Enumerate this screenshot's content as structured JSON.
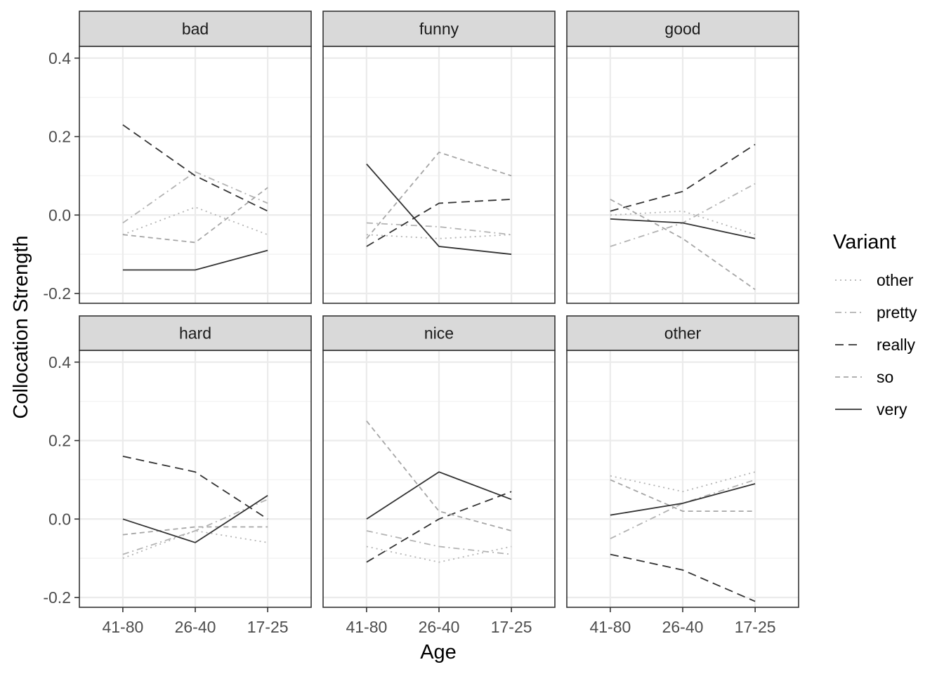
{
  "chart_data": {
    "type": "line",
    "xlabel": "Age",
    "ylabel": "Collocation Strength",
    "x": [
      "41-80",
      "26-40",
      "17-25"
    ],
    "ylim": [
      -0.225,
      0.43
    ],
    "yticks": [
      -0.2,
      0.0,
      0.2,
      0.4
    ],
    "ytick_labels": [
      "-0.2",
      "0.0",
      "0.2",
      "0.4"
    ],
    "grid": true,
    "legend": {
      "title": "Variant",
      "placement": "right",
      "entries": [
        "other",
        "pretty",
        "really",
        "so",
        "very"
      ]
    },
    "styles": {
      "other": {
        "color": "#b3b3b3",
        "dash": "2,5"
      },
      "pretty": {
        "color": "#b3b3b3",
        "dash": "9,5,2,5"
      },
      "really": {
        "color": "#333333",
        "dash": "12,7"
      },
      "so": {
        "color": "#a6a6a6",
        "dash": "7,5"
      },
      "very": {
        "color": "#333333",
        "dash": ""
      }
    },
    "panels": [
      {
        "title": "bad",
        "series": [
          {
            "name": "other",
            "values": [
              -0.05,
              0.02,
              -0.05
            ]
          },
          {
            "name": "pretty",
            "values": [
              -0.02,
              0.11,
              0.03
            ]
          },
          {
            "name": "really",
            "values": [
              0.23,
              0.1,
              0.01
            ]
          },
          {
            "name": "so",
            "values": [
              -0.05,
              -0.07,
              0.07
            ]
          },
          {
            "name": "very",
            "values": [
              -0.14,
              -0.14,
              -0.09
            ]
          }
        ]
      },
      {
        "title": "funny",
        "series": [
          {
            "name": "other",
            "values": [
              -0.05,
              -0.06,
              -0.05
            ]
          },
          {
            "name": "pretty",
            "values": [
              -0.02,
              -0.03,
              -0.05
            ]
          },
          {
            "name": "really",
            "values": [
              -0.08,
              0.03,
              0.04
            ]
          },
          {
            "name": "so",
            "values": [
              -0.06,
              0.16,
              0.1
            ]
          },
          {
            "name": "very",
            "values": [
              0.13,
              -0.08,
              -0.1
            ]
          }
        ]
      },
      {
        "title": "good",
        "series": [
          {
            "name": "other",
            "values": [
              0.0,
              0.01,
              -0.05
            ]
          },
          {
            "name": "pretty",
            "values": [
              -0.08,
              -0.02,
              0.08
            ]
          },
          {
            "name": "really",
            "values": [
              0.01,
              0.06,
              0.18
            ]
          },
          {
            "name": "so",
            "values": [
              0.04,
              -0.06,
              -0.19
            ]
          },
          {
            "name": "very",
            "values": [
              -0.01,
              -0.02,
              -0.06
            ]
          }
        ]
      },
      {
        "title": "hard",
        "series": [
          {
            "name": "other",
            "values": [
              -0.1,
              -0.03,
              -0.06
            ]
          },
          {
            "name": "pretty",
            "values": [
              -0.09,
              -0.03,
              0.05
            ]
          },
          {
            "name": "really",
            "values": [
              0.16,
              0.12,
              0.0
            ]
          },
          {
            "name": "so",
            "values": [
              -0.04,
              -0.02,
              -0.02
            ]
          },
          {
            "name": "very",
            "values": [
              0.0,
              -0.06,
              0.06
            ]
          }
        ]
      },
      {
        "title": "nice",
        "series": [
          {
            "name": "other",
            "values": [
              -0.07,
              -0.11,
              -0.07
            ]
          },
          {
            "name": "pretty",
            "values": [
              -0.03,
              -0.07,
              -0.09
            ]
          },
          {
            "name": "really",
            "values": [
              -0.11,
              0.0,
              0.07
            ]
          },
          {
            "name": "so",
            "values": [
              0.25,
              0.02,
              -0.03
            ]
          },
          {
            "name": "very",
            "values": [
              0.0,
              0.12,
              0.05
            ]
          }
        ]
      },
      {
        "title": "other",
        "series": [
          {
            "name": "other",
            "values": [
              0.11,
              0.07,
              0.12
            ]
          },
          {
            "name": "pretty",
            "values": [
              -0.05,
              0.04,
              0.1
            ]
          },
          {
            "name": "really",
            "values": [
              -0.09,
              -0.13,
              -0.21
            ]
          },
          {
            "name": "so",
            "values": [
              0.1,
              0.02,
              0.02
            ]
          },
          {
            "name": "very",
            "values": [
              0.01,
              0.04,
              0.09
            ]
          }
        ]
      }
    ]
  }
}
